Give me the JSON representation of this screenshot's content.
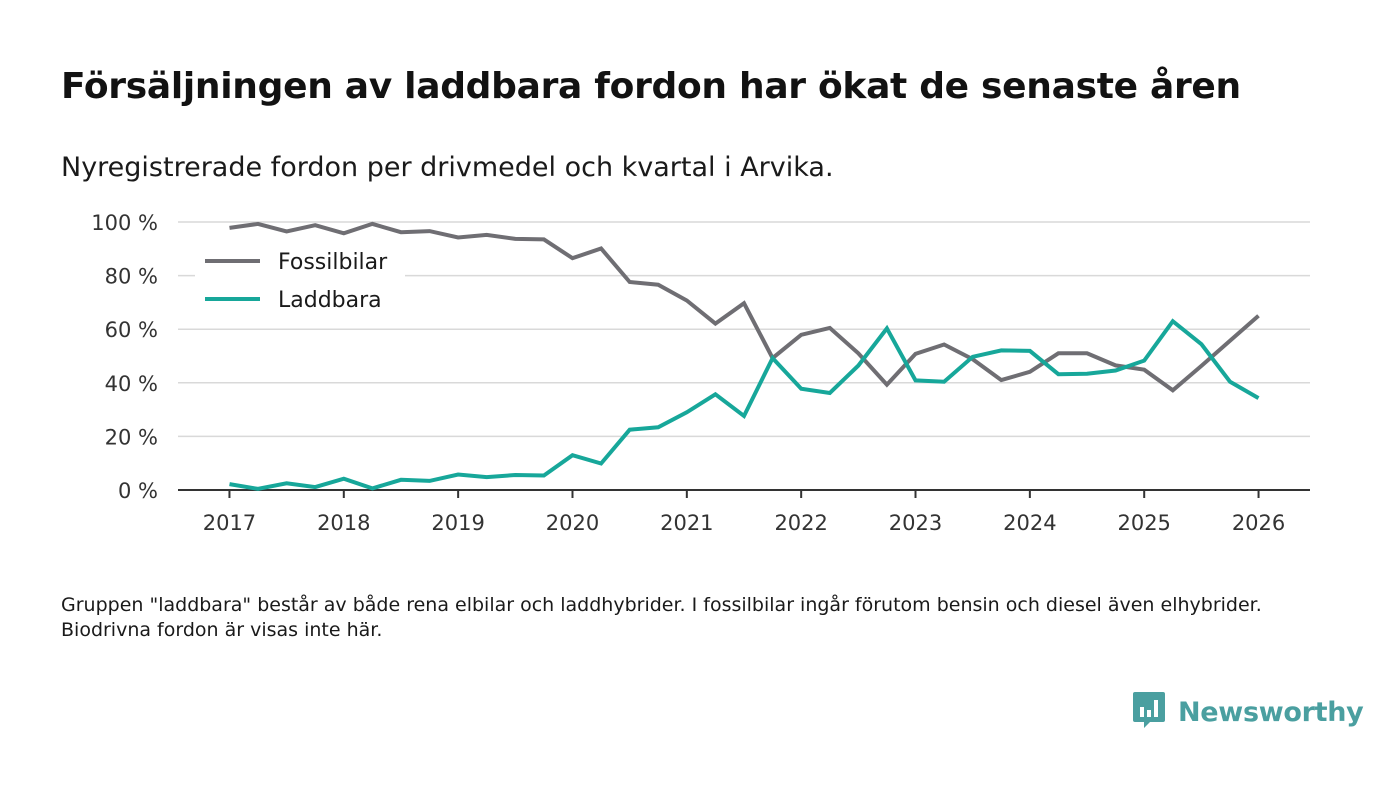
{
  "title": "Försäljningen av laddbara fordon har ökat de senaste åren",
  "subtitle": "Nyregistrerade fordon per drivmedel och kvartal i Arvika.",
  "note": "Gruppen \"laddbara\" består av både rena elbilar och laddhybrider. I fossilbilar ingår förutom bensin och diesel även elhybrider. Biodrivna fordon är visas inte här.",
  "brand": {
    "name": "Newsworthy",
    "icon": "newsworthy-logo-icon",
    "color": "#4a9fa0"
  },
  "chart_data": {
    "type": "line",
    "title": "Försäljningen av laddbara fordon har ökat de senaste åren",
    "xlabel": "",
    "ylabel": "",
    "ylim": [
      0,
      100
    ],
    "xlim": [
      2016.55,
      2026.45
    ],
    "y_ticks": [
      0,
      20,
      40,
      60,
      80,
      100
    ],
    "y_tick_labels": [
      "0 %",
      "20 %",
      "40 %",
      "60 %",
      "80 %",
      "100 %"
    ],
    "x_ticks": [
      2017,
      2018,
      2019,
      2020,
      2021,
      2022,
      2023,
      2024,
      2025,
      2026
    ],
    "x_tick_labels": [
      "2017",
      "2018",
      "2019",
      "2020",
      "2021",
      "2022",
      "2023",
      "2024",
      "2025",
      "2026"
    ],
    "grid": true,
    "legend": "top-left",
    "x": [
      2017,
      2017.25,
      2017.5,
      2017.75,
      2018,
      2018.25,
      2018.5,
      2018.75,
      2019,
      2019.25,
      2019.5,
      2019.75,
      2020,
      2020.25,
      2020.5,
      2020.75,
      2021,
      2021.25,
      2021.5,
      2021.75,
      2022,
      2022.25,
      2022.5,
      2022.75,
      2023,
      2023.25,
      2023.5,
      2023.75,
      2024,
      2024.25,
      2024.5,
      2024.75,
      2025,
      2025.25,
      2025.5,
      2025.75,
      2026
    ],
    "series": [
      {
        "name": "Fossilbilar",
        "color": "#6f6e73",
        "values": [
          97.8,
          99.3,
          96.5,
          98.8,
          95.8,
          99.3,
          96.2,
          96.6,
          94.2,
          95.2,
          93.7,
          93.5,
          86.5,
          90.1,
          77.6,
          76.6,
          70.7,
          62.1,
          69.7,
          49.2,
          57.9,
          60.5,
          51.0,
          39.3,
          50.8,
          54.3,
          48.8,
          41.0,
          44.1,
          51.0,
          51.0,
          46.5,
          44.9,
          37.2,
          46.3,
          55.7,
          65.0
        ]
      },
      {
        "name": "Laddbara",
        "color": "#17a79a",
        "values": [
          2.2,
          0.4,
          2.5,
          1.1,
          4.2,
          0.6,
          3.8,
          3.4,
          5.8,
          4.8,
          5.6,
          5.4,
          13.0,
          9.9,
          22.5,
          23.4,
          29.0,
          35.7,
          27.6,
          49.2,
          37.8,
          36.2,
          46.4,
          60.3,
          40.9,
          40.4,
          49.7,
          52.1,
          51.9,
          43.2,
          43.4,
          44.6,
          48.3,
          63.0,
          54.4,
          40.4,
          34.3
        ]
      }
    ]
  }
}
